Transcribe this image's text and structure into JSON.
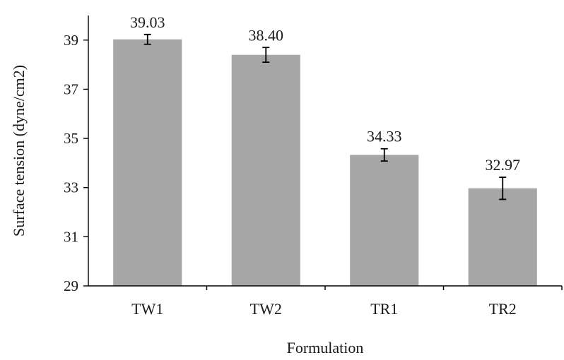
{
  "chart_data": {
    "type": "bar",
    "title": "",
    "xlabel": "Formulation",
    "ylabel": "Surface tension (dyne/cm2)",
    "ylim": [
      29,
      40
    ],
    "yticks": [
      29,
      31,
      33,
      35,
      37,
      39
    ],
    "categories": [
      "TW1",
      "TW2",
      "TR1",
      "TR2"
    ],
    "values": [
      39.03,
      38.4,
      34.33,
      32.97
    ],
    "value_labels": [
      "39.03",
      "38.40",
      "34.33",
      "32.97"
    ],
    "error": [
      0.2,
      0.3,
      0.25,
      0.45
    ],
    "bar_color": "#a6a6a6",
    "grid": false,
    "legend": "none"
  }
}
